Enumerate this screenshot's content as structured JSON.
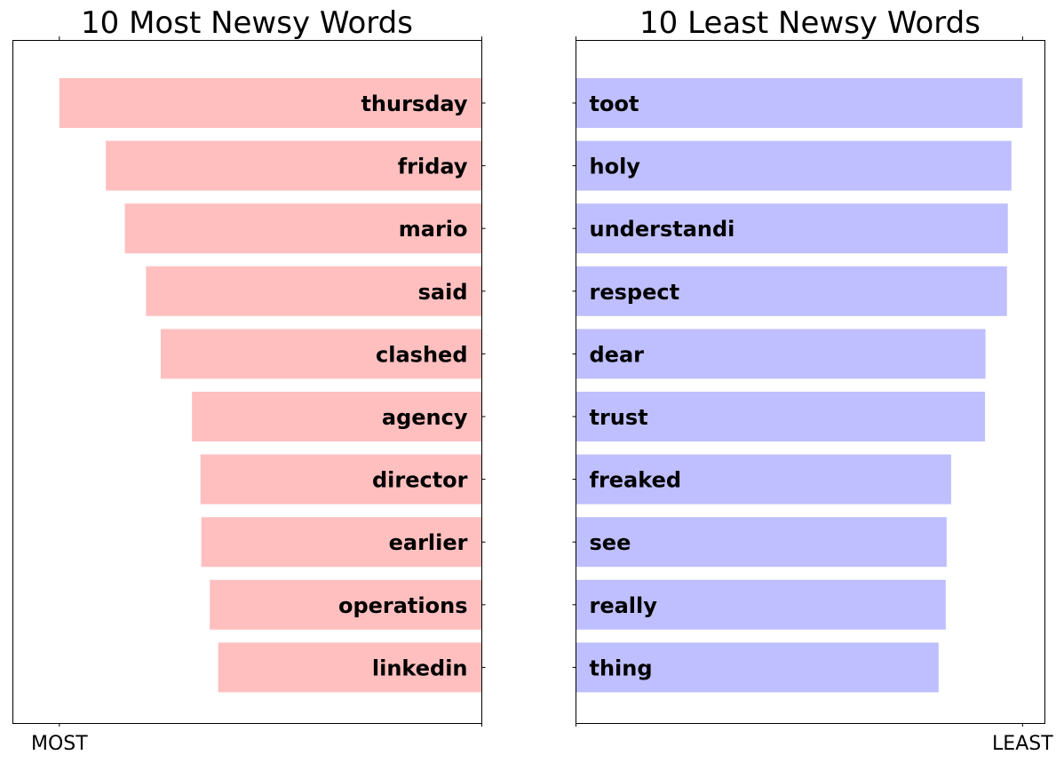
{
  "chart_data": [
    {
      "type": "bar",
      "orientation": "horizontal",
      "title": "10 Most Newsy Words",
      "categories": [
        "thursday",
        "friday",
        "mario",
        "said",
        "clashed",
        "agency",
        "director",
        "earlier",
        "operations",
        "linkedin"
      ],
      "values": [
        1.0,
        0.89,
        0.845,
        0.795,
        0.76,
        0.686,
        0.666,
        0.664,
        0.644,
        0.624
      ],
      "xlim": [
        0.0,
        1.11
      ],
      "xtick_value": 1.0,
      "xtick_label": "MOST",
      "bar_direction": "right-to-left",
      "color": "#ffbfbf"
    },
    {
      "type": "bar",
      "orientation": "horizontal",
      "title": "10 Least Newsy Words",
      "categories": [
        "toot",
        "holy",
        "understandi",
        "respect",
        "dear",
        "trust",
        "freaked",
        "see",
        "really",
        "thing"
      ],
      "values": [
        1.0,
        0.975,
        0.967,
        0.965,
        0.917,
        0.916,
        0.84,
        0.83,
        0.828,
        0.812
      ],
      "xlim": [
        0.0,
        1.05
      ],
      "xtick_value": 1.0,
      "xtick_label": "LEAST",
      "bar_direction": "left-to-right",
      "color": "#bfbfff"
    }
  ]
}
